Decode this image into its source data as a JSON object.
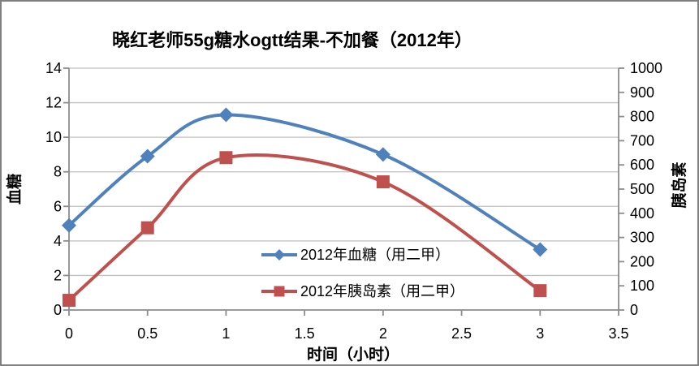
{
  "chart_data": {
    "type": "line",
    "smooth": true,
    "title": "晓红老师55g糖水ogtt结果-不加餐（2012年）",
    "xlabel": "时间（小时）",
    "x": {
      "min": 0,
      "max": 3.5,
      "ticks": [
        0,
        0.5,
        1,
        1.5,
        2,
        2.5,
        3,
        3.5
      ]
    },
    "y_left": {
      "label": "血糖",
      "min": 0,
      "max": 14,
      "ticks": [
        0,
        2,
        4,
        6,
        8,
        10,
        12,
        14
      ]
    },
    "y_right": {
      "label": "胰岛素",
      "min": 0,
      "max": 1000,
      "ticks": [
        0,
        100,
        200,
        300,
        400,
        500,
        600,
        700,
        800,
        900,
        1000
      ]
    },
    "grid": "horizontal-only",
    "legend": {
      "position": "inside-bottom-center",
      "border": "none"
    },
    "series": [
      {
        "name": "2012年血糖（用二甲）",
        "axis": "left",
        "marker": "diamond",
        "color": "#4F81BD",
        "x": [
          0,
          0.5,
          1,
          2,
          3
        ],
        "values": [
          4.9,
          8.9,
          11.3,
          9.0,
          3.5
        ]
      },
      {
        "name": "2012年胰岛素（用二甲）",
        "axis": "right",
        "marker": "square",
        "color": "#C0504D",
        "x": [
          0,
          0.5,
          1,
          2,
          3
        ],
        "values": [
          40,
          340,
          630,
          530,
          80
        ]
      }
    ],
    "colors": {
      "grid": "#BFBFBF",
      "axis": "#8C8C8C",
      "text": "#000000",
      "background": "#FFFFFF",
      "frame_border": "#808080"
    }
  }
}
